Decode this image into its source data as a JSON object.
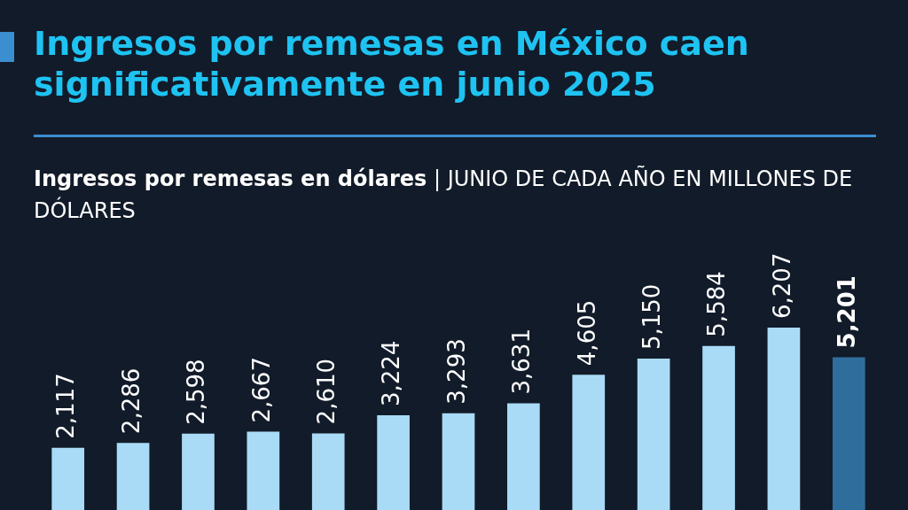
{
  "chart_data": {
    "type": "bar",
    "title": "Ingresos por remesas en México caen significativamente en junio 2025",
    "subtitle": "Ingresos por remesas en dólares",
    "annotations": [
      "| JUNIO DE CADA AÑO EN MILLONES DE DÓLARES"
    ],
    "categories": [
      null,
      null,
      null,
      null,
      null,
      null,
      null,
      null,
      null,
      null,
      null,
      null,
      null
    ],
    "values": [
      2117,
      2286,
      2598,
      2667,
      2610,
      3224,
      3293,
      3631,
      4605,
      5150,
      5584,
      6207,
      5201
    ],
    "value_labels": [
      "2,117",
      "2,286",
      "2,598",
      "2,667",
      "2,610",
      "3,224",
      "3,293",
      "3,631",
      "4,605",
      "5,150",
      "5,584",
      "6,207",
      "5,201"
    ],
    "colors": [
      "#a9dbf7",
      "#a9dbf7",
      "#a9dbf7",
      "#a9dbf7",
      "#a9dbf7",
      "#a9dbf7",
      "#a9dbf7",
      "#a9dbf7",
      "#a9dbf7",
      "#a9dbf7",
      "#a9dbf7",
      "#a9dbf7",
      "#2f6e9c"
    ]
  }
}
